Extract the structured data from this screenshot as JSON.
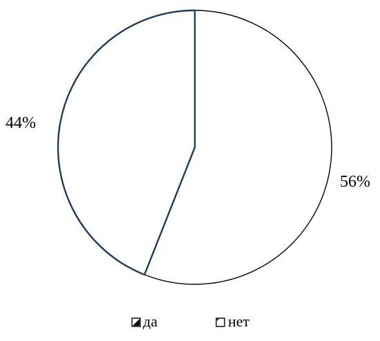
{
  "chart_data": {
    "type": "pie",
    "categories": [
      "да",
      "нет"
    ],
    "values": [
      44,
      56
    ],
    "data_labels": [
      "44%",
      "56%"
    ],
    "slice_fill": "#ffffff",
    "slice_edge_colors": [
      "#1f3a5f",
      "#000000"
    ],
    "legend": {
      "placement": "bottom",
      "entries": [
        "да",
        "нет"
      ]
    }
  }
}
